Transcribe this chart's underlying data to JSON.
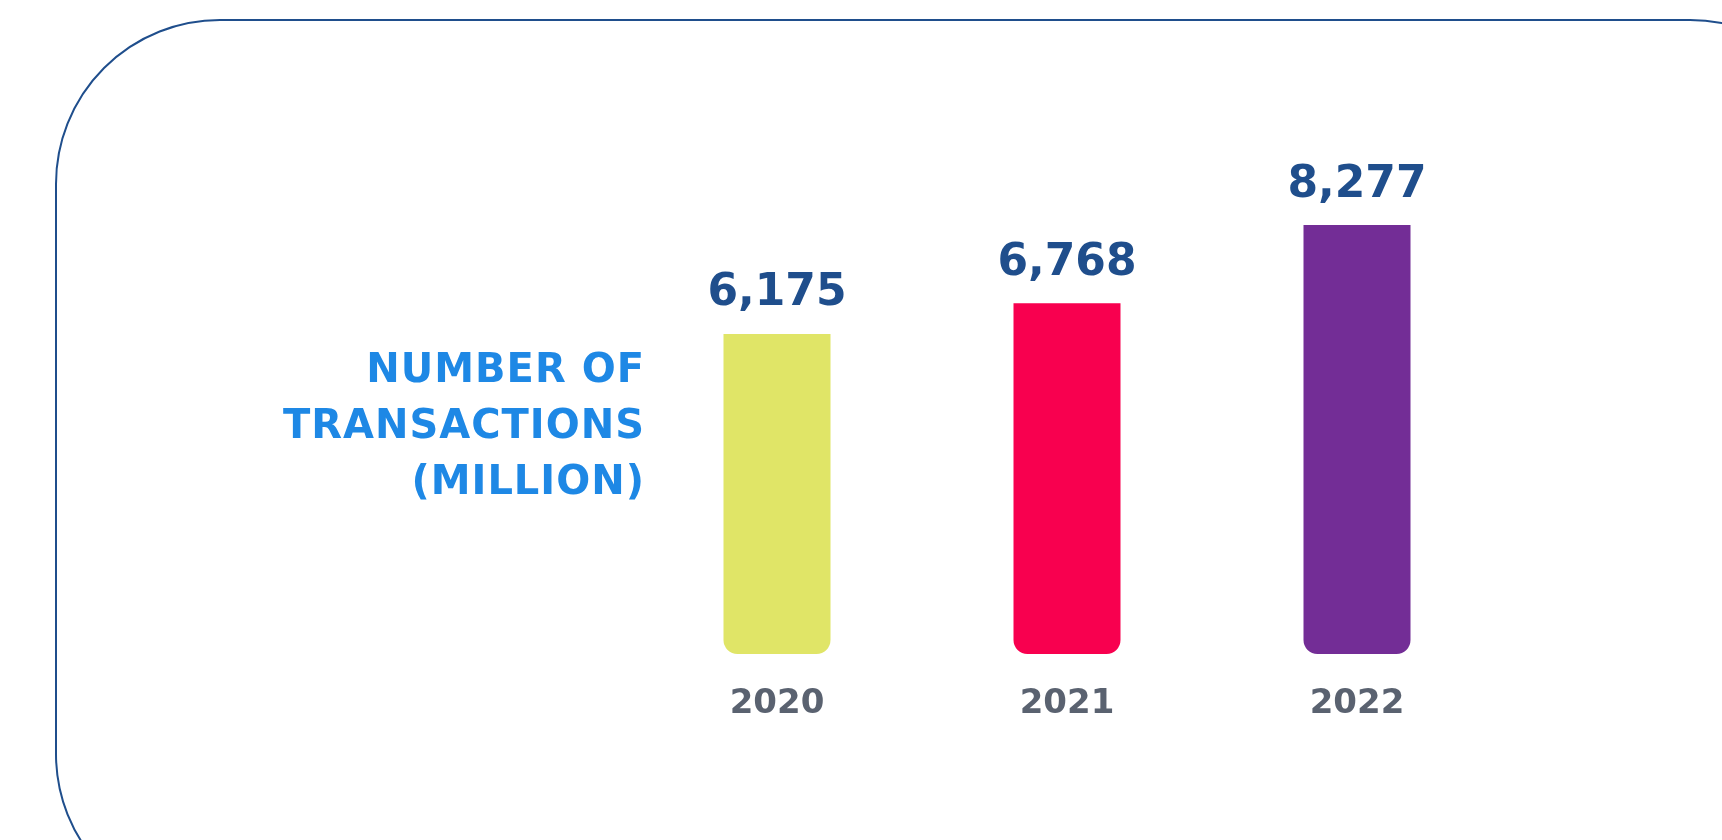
{
  "chart_data": {
    "type": "bar",
    "ylabel": "NUMBER OF TRANSACTIONS (MILLION)",
    "categories": [
      "2020",
      "2021",
      "2022"
    ],
    "values": [
      6175,
      6768,
      8277
    ],
    "colors": [
      "#e0e567",
      "#f8004f",
      "#732d96"
    ],
    "value_labels": [
      "6,175",
      "6,768",
      "8,277"
    ]
  }
}
